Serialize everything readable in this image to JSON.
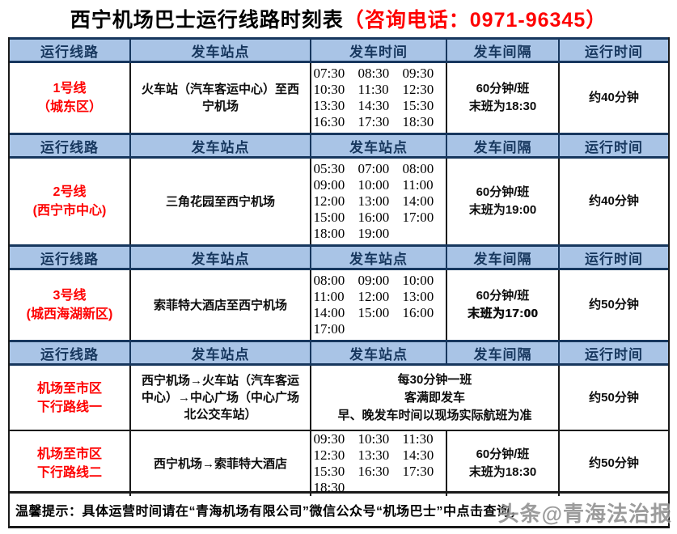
{
  "title": {
    "main": "西宁机场巴士运行线路时刻表",
    "contact": "（咨询电话：0971-96345）"
  },
  "headers": [
    [
      "运行线路",
      "发车站点",
      "发车时间",
      "发车间隔",
      "运行时间"
    ],
    [
      "运行线路",
      "发车站点",
      "发车站点",
      "发车间隔",
      "运行时间"
    ],
    [
      "运行线路",
      "发车站点",
      "发车站点",
      "发车间隔",
      "运行时间"
    ],
    [
      "运行线路",
      "发车站点",
      "发车站点",
      "发车间隔",
      "运行时间"
    ]
  ],
  "rows": [
    {
      "route": [
        "1号线",
        "（城东区）"
      ],
      "station": "火车站（汽车客运中心）至西宁机场",
      "times": [
        "07:30",
        "08:30",
        "09:30",
        "10:30",
        "11:30",
        "12:30",
        "13:30",
        "14:30",
        "15:30",
        "16:30",
        "17:30",
        "18:30"
      ],
      "interval": [
        "60分钟/班",
        "末班为18:30"
      ],
      "duration": "约40分钟"
    },
    {
      "route": [
        "2号线",
        "(西宁市中心)"
      ],
      "station": "三角花园至西宁机场",
      "times": [
        "05:30",
        "07:00",
        "08:00",
        "09:00",
        "10:00",
        "11:00",
        "12:00",
        "13:00",
        "14:00",
        "15:00",
        "16:00",
        "17:00",
        "18:00",
        "19:00"
      ],
      "interval": [
        "60分钟/班",
        "末班为19:00"
      ],
      "duration": "约40分钟"
    },
    {
      "route": [
        "3号线",
        "(城西海湖新区)"
      ],
      "station": "索菲特大酒店至西宁机场",
      "times": [
        "08:00",
        "09:00",
        "10:00",
        "11:00",
        "12:00",
        "13:00",
        "14:00",
        "15:00",
        "16:00",
        "17:00"
      ],
      "interval": [
        "60分钟/班",
        "末班为17:00"
      ],
      "duration": "约50分钟"
    },
    {
      "route": [
        "机场至市区",
        "下行路线一"
      ],
      "station": "西宁机场→火车站（汽车客运中心）→中心广场（中心广场北公交车站）",
      "merged_info": [
        "每30分钟一班",
        "客满即发车",
        "早、晚发车时间以现场实际航班为准"
      ],
      "duration": "约50分钟"
    },
    {
      "route": [
        "机场至市区",
        "下行路线二"
      ],
      "station": "西宁机场→索菲特大酒店",
      "times": [
        "09:30",
        "10:30",
        "11:30",
        "12:30",
        "13:30",
        "14:30",
        "15:30",
        "16:30",
        "17:30",
        "18:30"
      ],
      "interval": [
        "60分钟/班",
        "末班为18:30"
      ],
      "duration": "约50分钟"
    }
  ],
  "note": "温馨提示：具体运营时间请在“青海机场有限公司”微信公众号“机场巴士”中点击查询，",
  "watermark": "头条@青海法治报",
  "colors": {
    "header_bg": "#A9C4E6",
    "header_text": "#17375E",
    "accent_red": "#FE0000",
    "border_dark": "#17375E"
  }
}
